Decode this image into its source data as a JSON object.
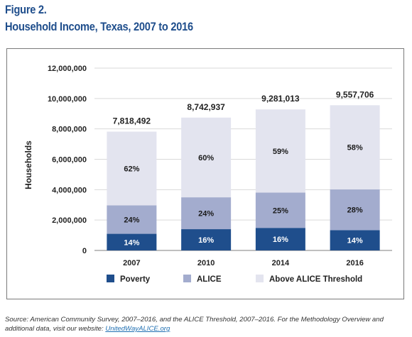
{
  "figure_label": "Figure 2.",
  "figure_title": "Household Income, Texas, 2007 to 2016",
  "source_text": "Source: American Community Survey, 2007–2016, and the ALICE Threshold, 2007–2016. For the Methodology Overview and additional data, visit our website: ",
  "source_link": "UnitedWayALICE.org",
  "chart_data": {
    "type": "bar",
    "stacked": true,
    "categories": [
      "2007",
      "2010",
      "2014",
      "2016"
    ],
    "ylabel": "Households",
    "xlabel": "",
    "ylim": [
      0,
      12000000
    ],
    "yticks": [
      0,
      2000000,
      4000000,
      6000000,
      8000000,
      10000000,
      12000000
    ],
    "ytick_labels": [
      "0",
      "2,000,000",
      "4,000,000",
      "6,000,000",
      "8,000,000",
      "10,000,000",
      "12,000,000"
    ],
    "totals": [
      7818492,
      8742937,
      9281013,
      9557706
    ],
    "total_labels": [
      "7,818,492",
      "8,742,937",
      "9,281,013",
      "9,557,706"
    ],
    "series": [
      {
        "name": "Poverty",
        "color": "#1f4e8c",
        "label_color": "#ffffff",
        "percent": [
          14,
          16,
          16,
          14
        ],
        "labels": [
          "14%",
          "16%",
          "16%",
          "14%"
        ]
      },
      {
        "name": "ALICE",
        "color": "#a3acce",
        "label_color": "#1a1a1a",
        "percent": [
          24,
          24,
          25,
          28
        ],
        "labels": [
          "24%",
          "24%",
          "25%",
          "28%"
        ]
      },
      {
        "name": "Above ALICE Threshold",
        "color": "#e3e4ef",
        "label_color": "#1a1a1a",
        "percent": [
          62,
          60,
          59,
          58
        ],
        "labels": [
          "62%",
          "60%",
          "59%",
          "58%"
        ]
      }
    ],
    "grid": true,
    "legend_position": "bottom"
  }
}
